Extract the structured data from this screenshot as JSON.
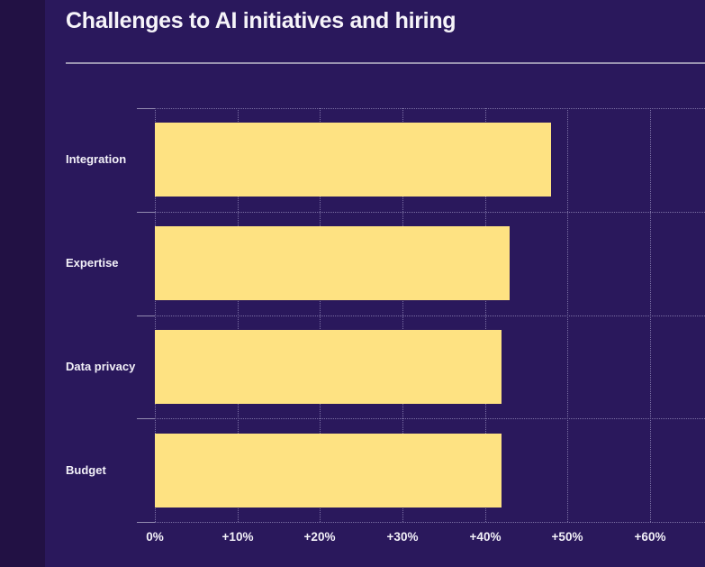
{
  "header": {
    "title": "Challenges to AI initiatives and hiring"
  },
  "chart_data": {
    "type": "bar",
    "orientation": "horizontal",
    "title": "Challenges to AI initiatives and hiring",
    "categories": [
      "Integration",
      "Expertise",
      "Data privacy",
      "Budget"
    ],
    "values": [
      48,
      43,
      42,
      42
    ],
    "unit": "%",
    "xlabel": "",
    "ylabel": "",
    "xlim": [
      0,
      66.7
    ],
    "x_tick_values": [
      0,
      10,
      20,
      30,
      40,
      50,
      60
    ],
    "x_tick_labels": [
      "0%",
      "+10%",
      "+20%",
      "+30%",
      "+40%",
      "+50%",
      "+60%"
    ],
    "grid": "dotted",
    "legend": "none"
  },
  "colors": {
    "page_background": "#2a185c",
    "left_strip": "#221144",
    "bar_fill": "#fee282",
    "title_text": "#f6f4f9",
    "label_text": "#f2f0f8",
    "grid_dotted": "#7b70a4",
    "axis_tick_solid": "#938bb0",
    "title_divider": "#9a93b0"
  }
}
